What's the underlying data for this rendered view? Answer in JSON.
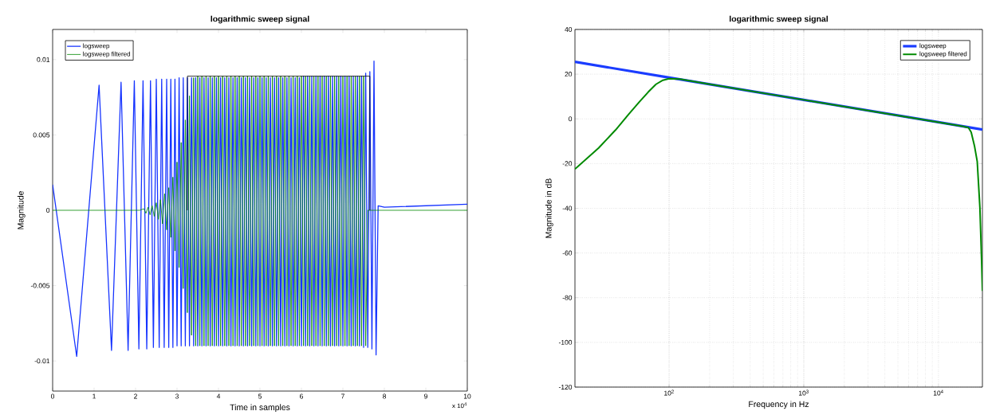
{
  "chart_data": [
    {
      "type": "line",
      "title": "logarithmic sweep signal",
      "xlabel": "Time in samples",
      "ylabel": "Magnitude",
      "xlim": [
        0,
        10
      ],
      "ylim": [
        -0.012,
        0.012
      ],
      "xticks": [
        0,
        1,
        2,
        3,
        4,
        5,
        6,
        7,
        8,
        9,
        10
      ],
      "yticks": [
        -0.01,
        -0.005,
        0,
        0.005,
        0.01
      ],
      "annotations": [
        "x 10$^{4}$"
      ],
      "legend": "top left",
      "series": [
        {
          "name": "logsweep",
          "color": "#1533ff",
          "x": [
            0,
            0.58,
            1.12,
            1.42,
            1.65,
            1.82,
            1.97,
            2.08,
            2.18,
            2.27,
            2.36,
            2.43,
            2.5,
            2.57,
            2.63,
            2.69,
            2.75,
            2.8,
            2.85,
            2.9,
            2.95,
            3,
            3.05,
            3.1,
            3.15,
            3.2,
            3.25,
            3.3,
            3.35,
            3.4,
            3.45,
            3.5,
            3.55,
            3.6,
            3.65,
            3.7,
            3.75,
            3.8,
            3.85,
            3.9,
            3.95,
            4,
            4.05,
            4.1,
            4.15,
            4.2,
            4.25,
            4.3,
            4.35,
            4.4,
            4.45,
            4.5,
            4.55,
            4.6,
            4.65,
            4.7,
            4.75,
            4.8,
            4.85,
            4.9,
            4.95,
            5,
            5.05,
            5.1,
            5.15,
            5.2,
            5.25,
            5.3,
            5.35,
            5.4,
            5.45,
            5.5,
            5.55,
            5.6,
            5.65,
            5.7,
            5.75,
            5.8,
            5.85,
            5.9,
            5.95,
            6,
            6.05,
            6.1,
            6.15,
            6.2,
            6.25,
            6.3,
            6.35,
            6.4,
            6.45,
            6.5,
            6.55,
            6.6,
            6.65,
            6.7,
            6.75,
            6.8,
            6.85,
            6.9,
            6.95,
            7,
            7.05,
            7.1,
            7.15,
            7.2,
            7.25,
            7.3,
            7.35,
            7.4,
            7.45,
            7.5,
            7.55,
            7.6,
            7.65,
            7.7,
            7.75,
            7.8,
            7.85,
            8,
            9,
            10
          ],
          "values": [
            0.0017,
            -0.0097,
            0.0083,
            -0.0093,
            0.0085,
            -0.0093,
            0.0086,
            -0.0092,
            0.0086,
            -0.0092,
            0.0086,
            -0.0091,
            0.0087,
            -0.0091,
            0.0087,
            -0.0091,
            0.0087,
            -0.0091,
            0.0087,
            -0.0091,
            0.0087,
            -0.009,
            0.0088,
            -0.009,
            0.0088,
            -0.009,
            0.0088,
            -0.009,
            0.0088,
            -0.009,
            0.0088,
            -0.009,
            0.0088,
            -0.009,
            0.0088,
            -0.009,
            0.0088,
            -0.009,
            0.0088,
            -0.009,
            0.0088,
            -0.009,
            0.0088,
            -0.009,
            0.0088,
            -0.009,
            0.0088,
            -0.009,
            0.0088,
            -0.009,
            0.0088,
            -0.009,
            0.0088,
            -0.009,
            0.0088,
            -0.009,
            0.0088,
            -0.009,
            0.0088,
            -0.009,
            0.0088,
            -0.009,
            0.0088,
            -0.009,
            0.0088,
            -0.009,
            0.0088,
            -0.009,
            0.0088,
            -0.009,
            0.0088,
            -0.009,
            0.0088,
            -0.009,
            0.0088,
            -0.009,
            0.0088,
            -0.009,
            0.0088,
            -0.009,
            0.0088,
            -0.009,
            0.0089,
            -0.009,
            0.0089,
            -0.009,
            0.0089,
            -0.009,
            0.0089,
            -0.009,
            0.0089,
            -0.009,
            0.0089,
            -0.009,
            0.0089,
            -0.009,
            0.0089,
            -0.009,
            0.0089,
            -0.009,
            0.0089,
            -0.009,
            0.0089,
            -0.009,
            0.0089,
            -0.009,
            0.0089,
            -0.009,
            0.0089,
            -0.009,
            0.0089,
            -0.0091,
            0.0091,
            -0.0091,
            0.0092,
            -0.0092,
            0.0099,
            -0.0096,
            0.0003,
            0.0002,
            0.0003,
            0.0004
          ]
        },
        {
          "name": "logsweep filtered",
          "color": "#008a00",
          "x": [
            0,
            2.1,
            2.2,
            2.25,
            2.3,
            2.35,
            2.4,
            2.45,
            2.5,
            2.55,
            2.6,
            2.65,
            2.7,
            2.75,
            2.8,
            2.85,
            2.9,
            2.95,
            3,
            3.05,
            3.1,
            3.15,
            3.2,
            3.25,
            3.3,
            3.35,
            3.4,
            3.45,
            3.5,
            3.55,
            3.6,
            3.65,
            3.7,
            3.75,
            3.8,
            3.85,
            3.9,
            3.95,
            4,
            4.05,
            4.1,
            4.15,
            4.2,
            4.25,
            4.3,
            4.35,
            4.4,
            4.45,
            4.5,
            4.55,
            4.6,
            4.65,
            4.7,
            4.75,
            4.8,
            4.85,
            4.9,
            4.95,
            5,
            5.05,
            5.1,
            5.15,
            5.2,
            5.25,
            5.3,
            5.35,
            5.4,
            5.45,
            5.5,
            5.55,
            5.6,
            5.65,
            5.7,
            5.75,
            5.8,
            5.85,
            5.9,
            5.95,
            6,
            6.05,
            6.1,
            6.15,
            6.2,
            6.25,
            6.3,
            6.35,
            6.4,
            6.45,
            6.5,
            6.55,
            6.6,
            6.65,
            6.7,
            6.75,
            6.8,
            6.85,
            6.9,
            6.95,
            7,
            7.05,
            7.1,
            7.15,
            7.2,
            7.25,
            7.3,
            7.35,
            7.4,
            7.45,
            7.5,
            7.55,
            7.6,
            10
          ],
          "values": [
            0,
            0,
            0.0001,
            -0.0002,
            0.0002,
            -0.0003,
            0.0003,
            -0.0004,
            0.0005,
            -0.0006,
            0.0007,
            -0.0009,
            0.0011,
            -0.0013,
            0.0015,
            -0.0018,
            0.0022,
            -0.0027,
            0.0032,
            -0.0038,
            0.0045,
            -0.0052,
            0.006,
            -0.0068,
            0.0076,
            -0.0083,
            0.0088,
            -0.009,
            0.0089,
            -0.009,
            0.0089,
            -0.009,
            0.0089,
            -0.009,
            0.0089,
            -0.009,
            0.0089,
            -0.009,
            0.0089,
            -0.009,
            0.0089,
            -0.009,
            0.0089,
            -0.009,
            0.0089,
            -0.009,
            0.0089,
            -0.009,
            0.0089,
            -0.009,
            0.0089,
            -0.009,
            0.0089,
            -0.009,
            0.0089,
            -0.009,
            0.0089,
            -0.009,
            0.0089,
            -0.009,
            0.0089,
            -0.009,
            0.0089,
            -0.009,
            0.0089,
            -0.009,
            0.0089,
            -0.009,
            0.0089,
            -0.009,
            0.0089,
            -0.009,
            0.0089,
            -0.009,
            0.0089,
            -0.009,
            0.0089,
            -0.009,
            0.0089,
            -0.009,
            0.0089,
            -0.009,
            0.0089,
            -0.009,
            0.0089,
            -0.009,
            0.0089,
            -0.009,
            0.0089,
            -0.009,
            0.0089,
            -0.009,
            0.0089,
            -0.009,
            0.0089,
            -0.009,
            0.0089,
            -0.009,
            0.0089,
            -0.009,
            0.0089,
            -0.009,
            0.0089,
            -0.009,
            0.0089,
            -0.009,
            0.0089,
            -0.009,
            0.0089,
            -0.009,
            0,
            0
          ]
        },
        {
          "color": "#000000",
          "x": [
            3.25,
            3.25,
            7.65,
            7.65
          ],
          "values": [
            0,
            0.0089,
            0.0089,
            0
          ]
        }
      ]
    },
    {
      "type": "line",
      "title": "logarithmic sweep signal",
      "xlabel": "Frequency in Hz",
      "ylabel": "Magnitude in dB",
      "log": "x",
      "grid": true,
      "legend": "top right",
      "xlim": [
        20,
        21200
      ],
      "ylim": [
        -120,
        40
      ],
      "xticks": [
        {
          "value": 100,
          "label": "10$^{2}$"
        },
        {
          "value": 1000,
          "label": "10$^{3}$"
        },
        {
          "value": 10000,
          "label": "10$^{4}$"
        }
      ],
      "yticks": [
        -120,
        -100,
        -80,
        -60,
        -40,
        -20,
        0,
        20,
        40
      ],
      "series": [
        {
          "name": "logsweep",
          "color": "#1a3cff",
          "x": [
            20,
            100,
            1000,
            10000,
            21200
          ],
          "values": [
            25.5,
            18.5,
            8.5,
            -1.5,
            -4.8
          ]
        },
        {
          "name": "logsweep filtered",
          "color": "#008a00",
          "x": [
            20,
            30,
            40,
            50,
            60,
            70,
            80,
            90,
            100,
            120,
            200,
            1000,
            10000,
            15000,
            16700,
            17500,
            18500,
            19400,
            20300,
            20950,
            21200
          ],
          "values": [
            -22.5,
            -13,
            -5,
            2,
            7.5,
            12,
            15.5,
            17.3,
            18,
            17.8,
            15.5,
            8.5,
            -1.5,
            -3.3,
            -3.9,
            -6,
            -12,
            -19,
            -39.5,
            -65,
            -77
          ]
        }
      ]
    }
  ]
}
